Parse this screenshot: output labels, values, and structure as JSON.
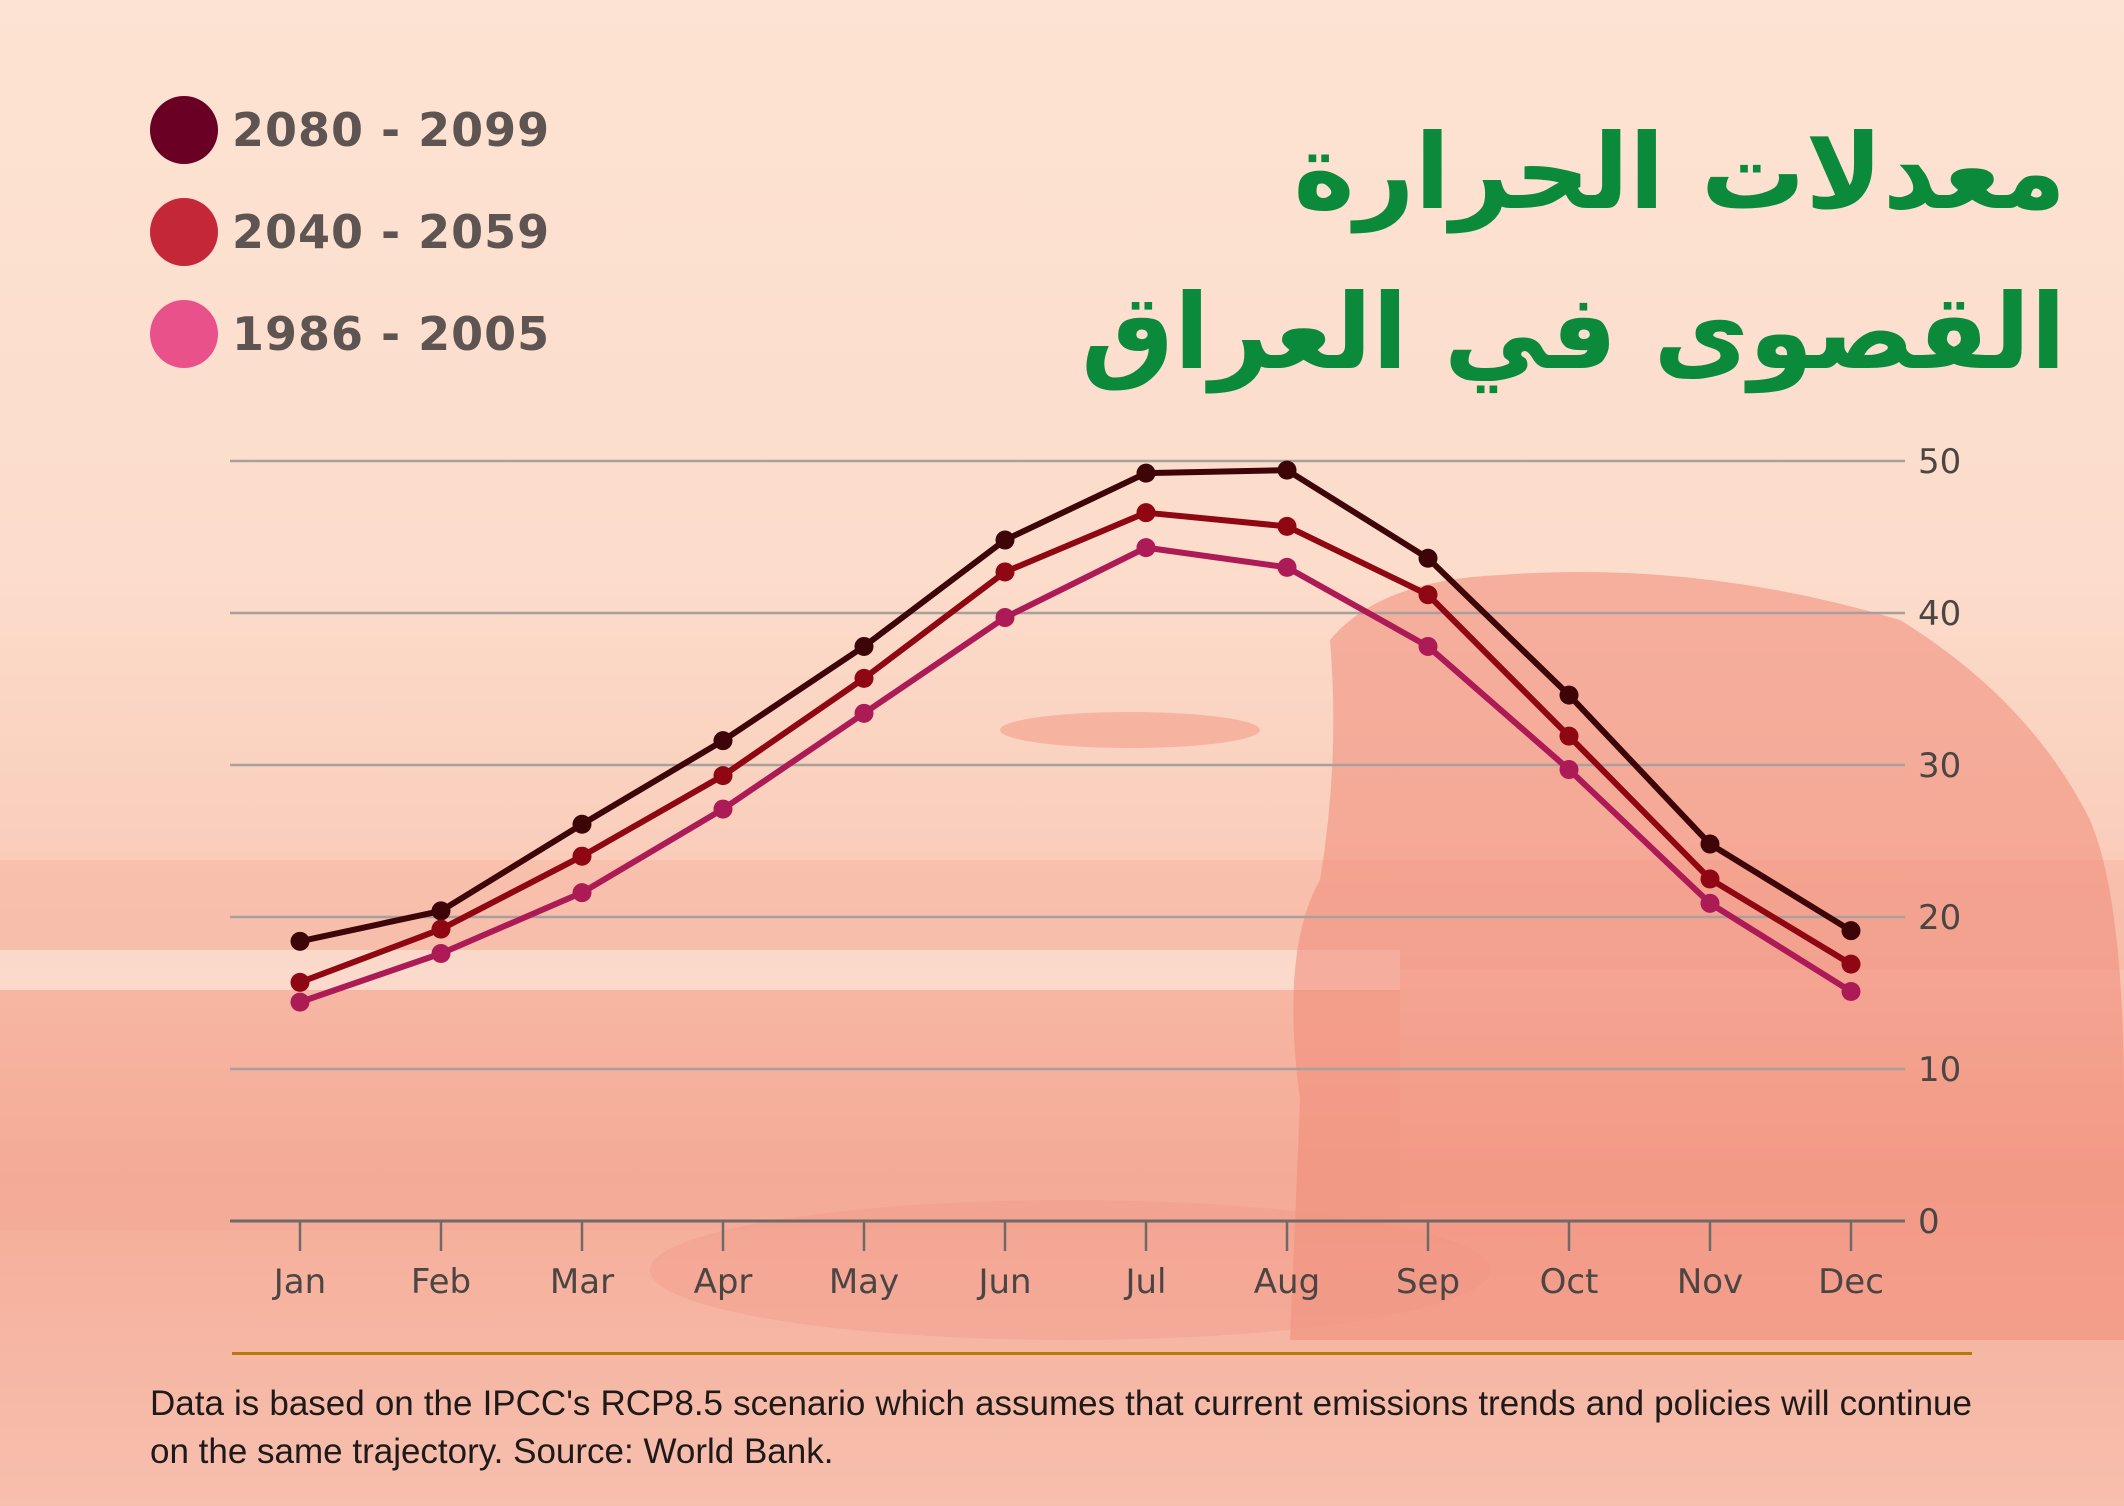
{
  "title": {
    "line1": "معدلات الحرارة",
    "line2": "القصوى في العراق"
  },
  "legend": [
    {
      "label": "2080 - 2099",
      "color": "#6a0024"
    },
    {
      "label": "2040 - 2059",
      "color": "#c42838"
    },
    {
      "label": "1986 - 2005",
      "color": "#e8518a"
    }
  ],
  "footnote": "Data is based on the IPCC's RCP8.5 scenario which assumes that current emissions trends and policies will continue on the same trajectory. Source: World Bank.",
  "chart_data": {
    "type": "line",
    "title": "معدلات الحرارة القصوى في العراق",
    "xlabel": "",
    "ylabel": "",
    "categories": [
      "Jan",
      "Feb",
      "Mar",
      "Apr",
      "May",
      "Jun",
      "Jul",
      "Aug",
      "Sep",
      "Oct",
      "Nov",
      "Dec"
    ],
    "y_ticks": [
      0,
      10,
      20,
      30,
      40,
      50
    ],
    "ylim": [
      0,
      50
    ],
    "y_axis_side": "right",
    "grid": true,
    "legend_position": "top-left",
    "series": [
      {
        "name": "2080 - 2099",
        "color": "#3d0508",
        "values": [
          18.4,
          20.4,
          26.1,
          31.6,
          37.8,
          44.8,
          49.2,
          49.4,
          43.6,
          34.6,
          24.8,
          19.1
        ]
      },
      {
        "name": "2040 - 2059",
        "color": "#8e0712",
        "values": [
          15.7,
          19.2,
          24.0,
          29.3,
          35.7,
          42.7,
          46.6,
          45.7,
          41.2,
          31.9,
          22.5,
          16.9
        ]
      },
      {
        "name": "1986 - 2005",
        "color": "#ad1b57",
        "values": [
          14.4,
          17.6,
          21.6,
          27.1,
          33.4,
          39.7,
          44.3,
          43.0,
          37.8,
          29.7,
          20.9,
          15.1
        ]
      }
    ]
  }
}
